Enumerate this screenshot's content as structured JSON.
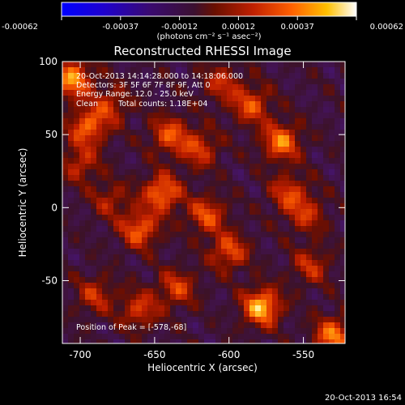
{
  "chart_data": {
    "type": "heatmap",
    "title": "Reconstructed RHESSI Image",
    "xlabel": "Heliocentric X (arcsec)",
    "ylabel": "Heliocentric Y (arcsec)",
    "xlim": [
      -712,
      -522
    ],
    "ylim": [
      -93,
      100
    ],
    "xticks": [
      -700,
      -650,
      -600,
      -550
    ],
    "yticks": [
      -50,
      0,
      50,
      100
    ],
    "colorbar": {
      "range": [
        -0.00062,
        0.00062
      ],
      "ticks": [
        "-0.00062",
        "-0.00037",
        "-0.00012",
        "0.00012",
        "0.00037",
        "0.00062"
      ],
      "unit_label": "(photons cm⁻² s⁻¹ asec⁻²)",
      "colors": [
        "#0000ff",
        "#3a00a0",
        "#3b1a5a",
        "#6a1a00",
        "#b42000",
        "#ff5a00",
        "#ffb400",
        "#ffffd0",
        "#ffffff"
      ]
    },
    "annotations": {
      "time_range": "20-Oct-2013 14:14:28.000 to 14:18:06.000",
      "detectors": "Detectors: 3F 5F 6F 7F 8F 9F, Att 0",
      "energy": "Energy Range: 12.0 - 25.0 keV",
      "clean": "Clean",
      "counts": "Total counts: 1.18E+04",
      "peak": "Position of Peak = [-578,-68]"
    },
    "peak": [
      -578,
      -68
    ],
    "timestamp": "20-Oct-2013 16:54",
    "bright_sources": [
      {
        "x": -705,
        "y": 88,
        "value": 0.00055
      },
      {
        "x": -695,
        "y": 55,
        "value": 0.00045
      },
      {
        "x": -700,
        "y": 30,
        "value": 0.0003
      },
      {
        "x": -680,
        "y": 5,
        "value": 0.00025
      },
      {
        "x": -660,
        "y": -15,
        "value": 0.00045
      },
      {
        "x": -640,
        "y": 50,
        "value": 0.0004
      },
      {
        "x": -645,
        "y": 10,
        "value": 0.0005
      },
      {
        "x": -620,
        "y": 40,
        "value": 0.00035
      },
      {
        "x": -615,
        "y": -5,
        "value": 0.0004
      },
      {
        "x": -600,
        "y": -30,
        "value": 0.0004
      },
      {
        "x": -585,
        "y": 70,
        "value": 0.0004
      },
      {
        "x": -578,
        "y": -68,
        "value": 0.00062
      },
      {
        "x": -565,
        "y": 45,
        "value": 0.0005
      },
      {
        "x": -560,
        "y": 10,
        "value": 0.00035
      },
      {
        "x": -548,
        "y": -5,
        "value": 0.0003
      },
      {
        "x": -530,
        "y": -88,
        "value": 0.0005
      },
      {
        "x": -635,
        "y": -55,
        "value": 0.00035
      },
      {
        "x": -660,
        "y": -70,
        "value": 0.00035
      },
      {
        "x": -690,
        "y": -60,
        "value": 0.0003
      },
      {
        "x": -605,
        "y": 85,
        "value": 0.0003
      },
      {
        "x": -545,
        "y": -40,
        "value": 0.0003
      },
      {
        "x": -680,
        "y": 70,
        "value": 0.0003
      }
    ]
  }
}
